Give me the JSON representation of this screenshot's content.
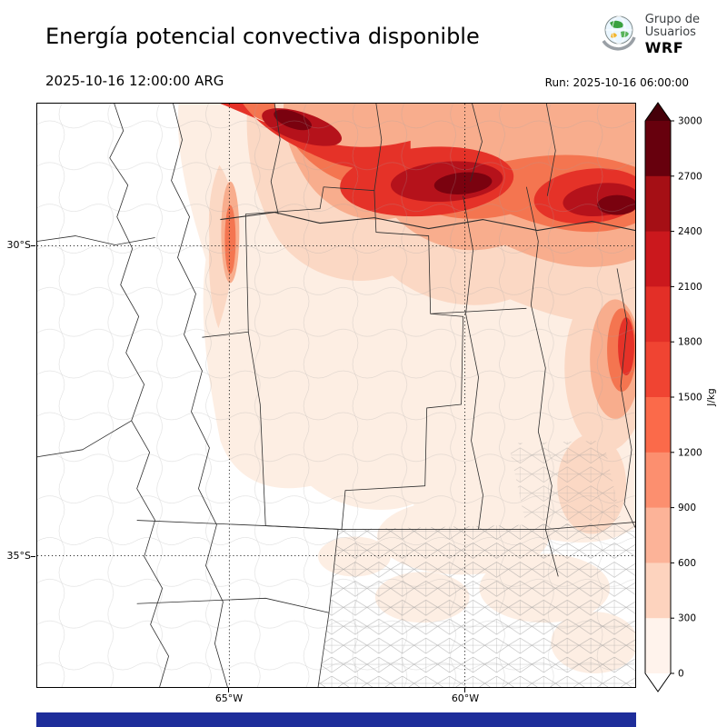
{
  "header": {
    "title": "Energía potencial convectiva disponible",
    "valid_time": "2025-10-16 12:00:00 ARG",
    "run_label": "Run: 2025-10-16 06:00:00",
    "logo": {
      "line1": "Grupo de",
      "line2": "Usuarios",
      "line3": "WRF"
    }
  },
  "axes": {
    "lat_ticks": [
      {
        "label": "30°S"
      },
      {
        "label": "35°S"
      }
    ],
    "lon_ticks": [
      {
        "label": "65°W"
      },
      {
        "label": "60°W"
      }
    ]
  },
  "colorbar": {
    "unit": "J/kg",
    "tick_labels_top_to_bottom": [
      "3000",
      "2700",
      "2400",
      "2100",
      "1800",
      "1500",
      "1200",
      "900",
      "600",
      "300",
      "0"
    ],
    "segment_colors_top_to_bottom": [
      "#67000d",
      "#a50f15",
      "#cb181d",
      "#e32f27",
      "#f04432",
      "#fb6a4a",
      "#fc8f6f",
      "#fcb398",
      "#fdd3be",
      "#fff3ec"
    ],
    "over_color": "#450009",
    "under_color": "#ffffff"
  },
  "colors": {
    "footer_bar": "#1e2d9a"
  },
  "chart_data": {
    "type": "heatmap",
    "title": "Energía potencial convectiva disponible",
    "variable": "CAPE (convective available potential energy)",
    "units": "J/kg",
    "valid_time": "2025-10-16 12:00:00 ARG",
    "model_run": "2025-10-16 06:00:00",
    "colormap": "Reds",
    "levels": [
      0,
      300,
      600,
      900,
      1200,
      1500,
      1800,
      2100,
      2400,
      2700,
      3000
    ],
    "lat_ticks_deg": [
      -30,
      -35
    ],
    "lon_ticks_deg": [
      -65,
      -60
    ],
    "features": [
      {
        "region": "east-west band across the far north of the map (~27-29°S)",
        "cape_jkg": "1200-3000+"
      },
      {
        "region": "northeast corner near right edge (~29-30°S)",
        "cape_jkg": "1800-3000+"
      },
      {
        "region": "narrow meridional strip near 64.8°W between 29-31°S",
        "cape_jkg": "600-1500"
      },
      {
        "region": "eastern margin near 57.5°W between 31-33°S",
        "cape_jkg": "600-1200"
      },
      {
        "region": "central plains and scattered patches over Buenos Aires",
        "cape_jkg": "0-600"
      },
      {
        "region": "west and southwest (Andes / Cuyo)",
        "cape_jkg": "0"
      }
    ]
  }
}
